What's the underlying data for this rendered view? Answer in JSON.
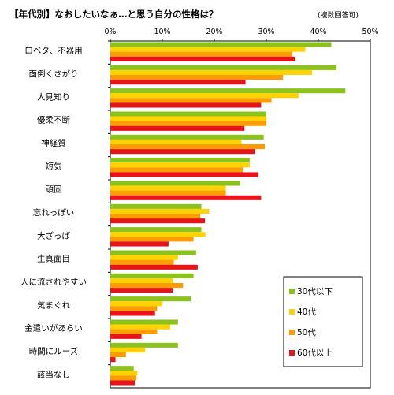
{
  "chart_data": {
    "type": "bar",
    "orientation": "horizontal",
    "title": "【年代別】なおしたいなぁ…と思う自分の性格は？",
    "subtitle": "(複数回答可)",
    "x_ticks": [
      "0%",
      "10%",
      "20%",
      "30%",
      "40%",
      "50%"
    ],
    "xlim": [
      0,
      50
    ],
    "unit": "%",
    "grid": false,
    "legend_position": "right-bottom",
    "categories": [
      "口ベタ、不器用",
      "面倒くさがり",
      "人見知り",
      "優柔不断",
      "神経質",
      "短気",
      "頑固",
      "忘れっぽい",
      "大ざっぱ",
      "生真面目",
      "人に流されやすい",
      "気まぐれ",
      "金遣いがあらい",
      "時間にルーズ",
      "該当なし"
    ],
    "series": [
      {
        "name": "30代以下",
        "color": "#8cc21c",
        "values": [
          42.5,
          43.5,
          45.2,
          30.0,
          29.5,
          26.8,
          25.0,
          17.5,
          17.5,
          16.5,
          16.0,
          15.5,
          13.0,
          13.0,
          4.5
        ]
      },
      {
        "name": "40代",
        "color": "#ffd200",
        "values": [
          37.5,
          38.8,
          36.2,
          30.0,
          25.2,
          26.8,
          22.2,
          19.0,
          18.3,
          13.0,
          12.0,
          10.0,
          11.5,
          6.7,
          5.2
        ]
      },
      {
        "name": "50代",
        "color": "#ff9c00",
        "values": [
          35.0,
          33.2,
          31.0,
          30.0,
          29.7,
          25.5,
          22.2,
          17.3,
          16.0,
          12.2,
          14.0,
          9.0,
          9.0,
          3.0,
          5.0
        ]
      },
      {
        "name": "60代以上",
        "color": "#e8141b",
        "values": [
          35.5,
          26.0,
          29.0,
          25.8,
          27.8,
          28.5,
          29.0,
          18.2,
          11.2,
          16.8,
          12.0,
          8.6,
          6.0,
          1.0,
          4.7
        ]
      }
    ]
  }
}
